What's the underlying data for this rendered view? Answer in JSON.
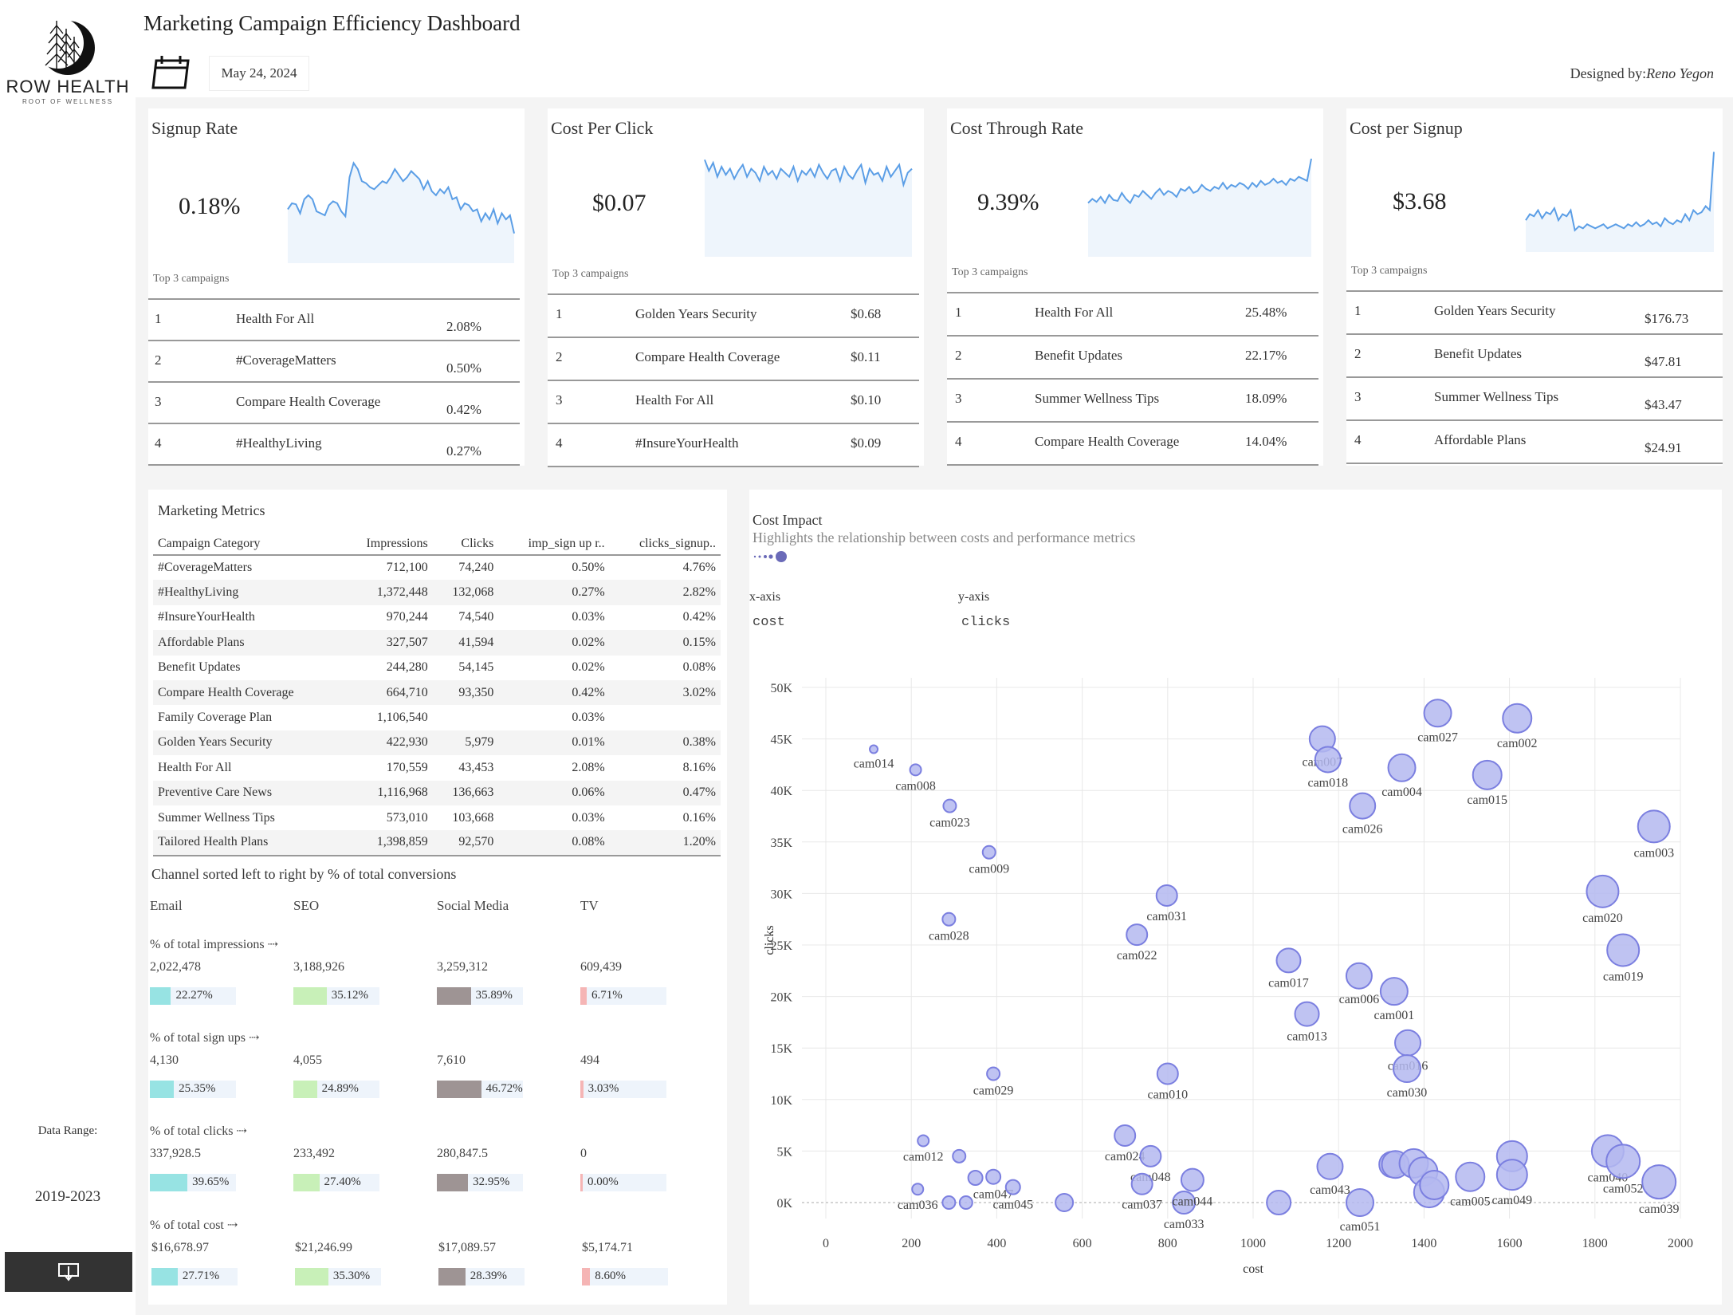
{
  "header": {
    "title": "Marketing Campaign Efficiency Dashboard",
    "date": "May 24, 2024",
    "designed_by_label": "Designed by:",
    "designed_by_name": "Reno Yegon"
  },
  "logo": {
    "text": "ROW HEALTH",
    "sub": "ROOT OF WELLNESS"
  },
  "sidebar": {
    "range_label": "Data Range:",
    "range_value": "2019-2023",
    "download_icon": "download-icon"
  },
  "kpis": [
    {
      "title": "Signup Rate",
      "value": "0.18%",
      "top_label": "Top 3 campaigns",
      "rows": [
        {
          "rank": "1",
          "name": "Health For All",
          "value": "2.08%"
        },
        {
          "rank": "2",
          "name": "#CoverageMatters",
          "value": "0.50%"
        },
        {
          "rank": "3",
          "name": "Compare Health Coverage",
          "value": "0.42%"
        },
        {
          "rank": "4",
          "name": "#HealthyLiving",
          "value": "0.27%"
        }
      ],
      "spark": [
        52,
        58,
        57,
        48,
        62,
        66,
        62,
        50,
        48,
        46,
        56,
        60,
        58,
        50,
        45,
        84,
        98,
        92,
        80,
        78,
        74,
        72,
        76,
        80,
        78,
        84,
        92,
        86,
        80,
        84,
        90,
        86,
        82,
        72,
        80,
        70,
        66,
        72,
        68,
        74,
        62,
        64,
        52,
        58,
        56,
        50,
        52,
        40,
        48,
        42,
        52,
        38,
        48,
        42,
        46,
        28
      ]
    },
    {
      "title": "Cost Per Click",
      "value": "$0.07",
      "top_label": "Top 3 campaigns",
      "rows": [
        {
          "rank": "1",
          "name": "Golden Years Security",
          "value": "$0.68"
        },
        {
          "rank": "2",
          "name": "Compare Health Coverage",
          "value": "$0.11"
        },
        {
          "rank": "3",
          "name": "Health For All",
          "value": "$0.10"
        },
        {
          "rank": "4",
          "name": "#InsureYourHealth",
          "value": "$0.09"
        }
      ],
      "spark": [
        95,
        84,
        92,
        78,
        88,
        80,
        86,
        76,
        84,
        90,
        78,
        86,
        82,
        74,
        88,
        80,
        84,
        76,
        86,
        82,
        78,
        88,
        74,
        84,
        80,
        86,
        78,
        90,
        82,
        76,
        84,
        86,
        74,
        88,
        80,
        76,
        84,
        90,
        72,
        86,
        80,
        82,
        74,
        88,
        78,
        84,
        90,
        70,
        82,
        86
      ]
    },
    {
      "title": "Cost Through Rate",
      "value": "9.39%",
      "top_label": "Top 3 campaigns",
      "rows": [
        {
          "rank": "1",
          "name": "Health For All",
          "value": "25.48%"
        },
        {
          "rank": "2",
          "name": "Benefit Updates",
          "value": "22.17%"
        },
        {
          "rank": "3",
          "name": "Summer Wellness Tips",
          "value": "18.09%"
        },
        {
          "rank": "4",
          "name": "Compare Health Coverage",
          "value": "14.04%"
        }
      ],
      "spark": [
        52,
        56,
        53,
        58,
        52,
        60,
        55,
        54,
        62,
        56,
        52,
        60,
        58,
        64,
        60,
        56,
        62,
        66,
        60,
        64,
        62,
        58,
        66,
        64,
        68,
        62,
        64,
        70,
        66,
        64,
        68,
        66,
        72,
        66,
        70,
        68,
        72,
        70,
        66,
        72,
        68,
        74,
        70,
        72,
        76,
        72,
        74,
        70,
        76,
        74,
        78,
        76,
        74,
        96
      ]
    },
    {
      "title": "Cost per Signup",
      "value": "$3.68",
      "top_label": "Top 3 campaigns",
      "rows": [
        {
          "rank": "1",
          "name": "Golden Years Security",
          "value": "$176.73"
        },
        {
          "rank": "2",
          "name": "Benefit Updates",
          "value": "$47.81"
        },
        {
          "rank": "3",
          "name": "Summer Wellness Tips",
          "value": "$43.47"
        },
        {
          "rank": "4",
          "name": "Affordable Plans",
          "value": "$24.91"
        }
      ],
      "spark": [
        30,
        36,
        34,
        40,
        32,
        38,
        36,
        42,
        30,
        36,
        34,
        40,
        20,
        24,
        22,
        26,
        24,
        22,
        24,
        26,
        22,
        24,
        26,
        24,
        22,
        26,
        24,
        28,
        24,
        26,
        30,
        26,
        28,
        24,
        32,
        28,
        26,
        30,
        28,
        36,
        30,
        40,
        36,
        38,
        44,
        40,
        98
      ]
    }
  ],
  "marketing_metrics": {
    "title": "Marketing Metrics",
    "columns": [
      "Campaign Category",
      "Impressions",
      "Clicks",
      "imp_sign up r..",
      "clicks_signup.."
    ],
    "rows": [
      [
        "#CoverageMatters",
        "712,100",
        "74,240",
        "0.50%",
        "4.76%"
      ],
      [
        "#HealthyLiving",
        "1,372,448",
        "132,068",
        "0.27%",
        "2.82%"
      ],
      [
        "#InsureYourHealth",
        "970,244",
        "74,540",
        "0.03%",
        "0.42%"
      ],
      [
        "Affordable Plans",
        "327,507",
        "41,594",
        "0.02%",
        "0.15%"
      ],
      [
        "Benefit Updates",
        "244,280",
        "54,145",
        "0.02%",
        "0.08%"
      ],
      [
        "Compare Health Coverage",
        "664,710",
        "93,350",
        "0.42%",
        "3.02%"
      ],
      [
        "Family Coverage Plan",
        "1,106,540",
        "",
        "0.03%",
        ""
      ],
      [
        "Golden Years Security",
        "422,930",
        "5,979",
        "0.01%",
        "0.38%"
      ],
      [
        "Health For All",
        "170,559",
        "43,453",
        "2.08%",
        "8.16%"
      ],
      [
        "Preventive Care News",
        "1,116,968",
        "136,663",
        "0.06%",
        "0.47%"
      ],
      [
        "Summer Wellness Tips",
        "573,010",
        "103,668",
        "0.03%",
        "0.16%"
      ],
      [
        "Tailored Health Plans",
        "1,398,859",
        "92,570",
        "0.08%",
        "1.20%"
      ]
    ]
  },
  "channels": {
    "title": "Channel  sorted left to right by % of total conversions",
    "names": [
      "Email",
      "SEO",
      "Social Media",
      "TV"
    ],
    "colors": [
      "#97e3e3",
      "#c8f0b8",
      "#9e9494",
      "#f5b5b5"
    ],
    "sections": [
      {
        "label": "% of total impressions ⇢",
        "totals": [
          "2,022,478",
          "3,188,926",
          "3,259,312",
          "609,439"
        ],
        "pcts": [
          "22.27%",
          "35.12%",
          "35.89%",
          "6.71%"
        ],
        "fracs": [
          0.2227,
          0.3512,
          0.3589,
          0.0671
        ]
      },
      {
        "label": "% of total sign ups ⇢",
        "totals": [
          "4,130",
          "4,055",
          "7,610",
          "494"
        ],
        "pcts": [
          "25.35%",
          "24.89%",
          "46.72%",
          "3.03%"
        ],
        "fracs": [
          0.2535,
          0.2489,
          0.4672,
          0.0303
        ]
      },
      {
        "label": "% of total clicks ⇢",
        "totals": [
          "337,928.5",
          "233,492",
          "280,847.5",
          "0"
        ],
        "pcts": [
          "39.65%",
          "27.40%",
          "32.95%",
          "0.00%"
        ],
        "fracs": [
          0.3965,
          0.274,
          0.3295,
          0.0
        ]
      },
      {
        "label": "% of total cost ⇢",
        "totals": [
          "$16,678.97",
          "$21,246.99",
          "$17,089.57",
          "$5,174.71"
        ],
        "pcts": [
          "27.71%",
          "35.30%",
          "28.39%",
          "8.60%"
        ],
        "fracs": [
          0.2771,
          0.353,
          0.2839,
          0.086
        ]
      }
    ]
  },
  "cost_impact": {
    "title": "Cost Impact",
    "subtitle": "Highlights the relationship between costs and performance metrics",
    "x_axis_label": "x-axis",
    "x_axis_value": "cost",
    "y_axis_label": "y-axis",
    "y_axis_value": "clicks"
  },
  "chart_data": {
    "type": "scatter",
    "xlabel": "cost",
    "ylabel": "clicks",
    "xlim": [
      0,
      2000
    ],
    "ylim": [
      0,
      50000
    ],
    "x_ticks": [
      "0",
      "200",
      "400",
      "600",
      "800",
      "1000",
      "1200",
      "1400",
      "1600",
      "1800",
      "2000"
    ],
    "y_ticks": [
      "0K",
      "5K",
      "10K",
      "15K",
      "20K",
      "25K",
      "30K",
      "35K",
      "40K",
      "45K",
      "50K"
    ],
    "grid": true,
    "color": "#7b7fe0",
    "points": [
      {
        "label": "cam014",
        "x": 112,
        "y": 44000,
        "r": 5
      },
      {
        "label": "cam008",
        "x": 210,
        "y": 42000,
        "r": 7
      },
      {
        "label": "cam023",
        "x": 290,
        "y": 38500,
        "r": 8
      },
      {
        "label": "cam009",
        "x": 382,
        "y": 34000,
        "r": 8
      },
      {
        "label": "cam028",
        "x": 288,
        "y": 27500,
        "r": 8
      },
      {
        "label": "cam029",
        "x": 392,
        "y": 12500,
        "r": 8
      },
      {
        "label": "cam012",
        "x": 228,
        "y": 6000,
        "r": 7
      },
      {
        "label": "cam036",
        "x": 215,
        "y": 1300,
        "r": 7
      },
      {
        "label": "",
        "x": 288,
        "y": 0,
        "r": 8
      },
      {
        "label": "",
        "x": 328,
        "y": 0,
        "r": 8
      },
      {
        "label": "",
        "x": 350,
        "y": 2400,
        "r": 9
      },
      {
        "label": "",
        "x": 312,
        "y": 4500,
        "r": 8
      },
      {
        "label": "cam047",
        "x": 392,
        "y": 2500,
        "r": 9
      },
      {
        "label": "cam045",
        "x": 438,
        "y": 1500,
        "r": 9
      },
      {
        "label": "",
        "x": 558,
        "y": 0,
        "r": 11
      },
      {
        "label": "cam031",
        "x": 798,
        "y": 29800,
        "r": 13
      },
      {
        "label": "cam022",
        "x": 728,
        "y": 26000,
        "r": 13
      },
      {
        "label": "cam010",
        "x": 800,
        "y": 12500,
        "r": 13
      },
      {
        "label": "cam024",
        "x": 700,
        "y": 6500,
        "r": 13
      },
      {
        "label": "cam048",
        "x": 760,
        "y": 4500,
        "r": 13
      },
      {
        "label": "cam037",
        "x": 740,
        "y": 1800,
        "r": 13
      },
      {
        "label": "cam033",
        "x": 838,
        "y": 0,
        "r": 14
      },
      {
        "label": "cam044",
        "x": 858,
        "y": 2200,
        "r": 14
      },
      {
        "label": "cam007",
        "x": 1162,
        "y": 45000,
        "r": 16
      },
      {
        "label": "cam018",
        "x": 1175,
        "y": 43000,
        "r": 16
      },
      {
        "label": "cam027",
        "x": 1432,
        "y": 47500,
        "r": 17
      },
      {
        "label": "cam002",
        "x": 1618,
        "y": 47000,
        "r": 18
      },
      {
        "label": "cam004",
        "x": 1348,
        "y": 42200,
        "r": 17
      },
      {
        "label": "cam015",
        "x": 1548,
        "y": 41500,
        "r": 18
      },
      {
        "label": "cam026",
        "x": 1256,
        "y": 38500,
        "r": 16
      },
      {
        "label": "cam003",
        "x": 1938,
        "y": 36500,
        "r": 20
      },
      {
        "label": "cam020",
        "x": 1818,
        "y": 30200,
        "r": 20
      },
      {
        "label": "cam019",
        "x": 1866,
        "y": 24500,
        "r": 20
      },
      {
        "label": "cam006",
        "x": 1248,
        "y": 22000,
        "r": 16
      },
      {
        "label": "cam017",
        "x": 1083,
        "y": 23500,
        "r": 15
      },
      {
        "label": "cam001",
        "x": 1330,
        "y": 20500,
        "r": 17
      },
      {
        "label": "cam013",
        "x": 1126,
        "y": 18300,
        "r": 15
      },
      {
        "label": "cam016",
        "x": 1362,
        "y": 15500,
        "r": 16
      },
      {
        "label": "cam030",
        "x": 1360,
        "y": 13000,
        "r": 17
      },
      {
        "label": "cam043",
        "x": 1180,
        "y": 3500,
        "r": 16
      },
      {
        "label": "cam051",
        "x": 1250,
        "y": 0,
        "r": 17
      },
      {
        "label": "",
        "x": 1060,
        "y": 0,
        "r": 15
      },
      {
        "label": "",
        "x": 1325,
        "y": 3700,
        "r": 16
      },
      {
        "label": "",
        "x": 1333,
        "y": 3700,
        "r": 17
      },
      {
        "label": "",
        "x": 1376,
        "y": 3800,
        "r": 18
      },
      {
        "label": "",
        "x": 1398,
        "y": 3000,
        "r": 18
      },
      {
        "label": "",
        "x": 1412,
        "y": 1000,
        "r": 19
      },
      {
        "label": "",
        "x": 1424,
        "y": 1700,
        "r": 18
      },
      {
        "label": "cam005",
        "x": 1508,
        "y": 2500,
        "r": 18
      },
      {
        "label": "",
        "x": 1606,
        "y": 4500,
        "r": 19
      },
      {
        "label": "cam049",
        "x": 1606,
        "y": 2700,
        "r": 19
      },
      {
        "label": "cam040",
        "x": 1830,
        "y": 5000,
        "r": 20
      },
      {
        "label": "cam052",
        "x": 1866,
        "y": 4000,
        "r": 21
      },
      {
        "label": "cam039",
        "x": 1950,
        "y": 2000,
        "r": 21
      }
    ]
  }
}
